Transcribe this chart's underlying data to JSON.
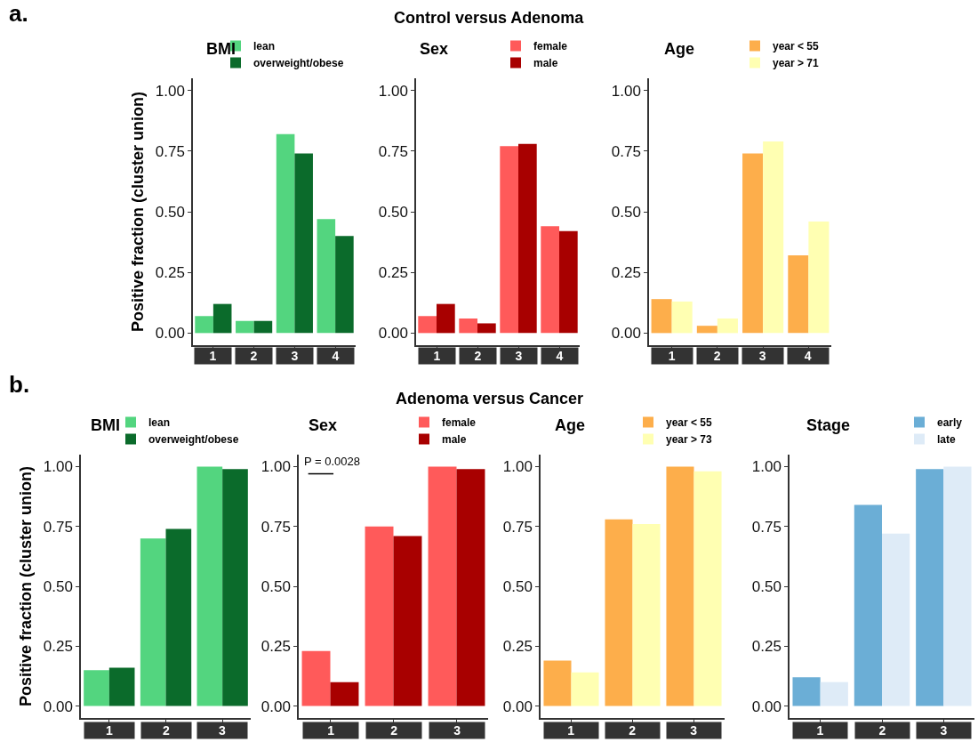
{
  "chart_data": [
    {
      "type": "bar",
      "title": "BMI",
      "ylabel": "Positive fraction (cluster union)",
      "annotations": [
        "a.",
        "Control versus Adenoma"
      ],
      "categories": [
        "1",
        "2",
        "3",
        "4"
      ],
      "legend": "top right",
      "grid": false,
      "ylim": [
        -0.05,
        1.05
      ],
      "yticks": [
        {
          "value": 0,
          "label": "0.00"
        },
        {
          "value": 0.25,
          "label": "0.25"
        },
        {
          "value": 0.5,
          "label": "0.50"
        },
        {
          "value": 0.75,
          "label": "0.75"
        },
        {
          "value": 1,
          "label": "1.00"
        }
      ],
      "series": [
        {
          "name": "lean",
          "color": "#53d57f",
          "values": [
            0.07,
            0.05,
            0.82,
            0.47
          ]
        },
        {
          "name": "overweight/obese",
          "color": "#0b6b2b",
          "values": [
            0.12,
            0.05,
            0.74,
            0.4
          ]
        }
      ]
    },
    {
      "type": "bar",
      "title": "Sex",
      "categories": [
        "1",
        "2",
        "3",
        "4"
      ],
      "legend": "top right",
      "grid": false,
      "ylim": [
        -0.05,
        1.05
      ],
      "yticks": [
        {
          "value": 0,
          "label": "0.00"
        },
        {
          "value": 0.25,
          "label": "0.25"
        },
        {
          "value": 0.5,
          "label": "0.50"
        },
        {
          "value": 0.75,
          "label": "0.75"
        },
        {
          "value": 1,
          "label": "1.00"
        }
      ],
      "series": [
        {
          "name": "female",
          "color": "#ff5a5a",
          "values": [
            0.07,
            0.06,
            0.77,
            0.44
          ]
        },
        {
          "name": "male",
          "color": "#a80000",
          "values": [
            0.12,
            0.04,
            0.78,
            0.42
          ]
        }
      ]
    },
    {
      "type": "bar",
      "title": "Age",
      "categories": [
        "1",
        "2",
        "3",
        "4"
      ],
      "legend": "top right",
      "grid": false,
      "ylim": [
        -0.05,
        1.05
      ],
      "yticks": [
        {
          "value": 0,
          "label": "0.00"
        },
        {
          "value": 0.25,
          "label": "0.25"
        },
        {
          "value": 0.5,
          "label": "0.50"
        },
        {
          "value": 0.75,
          "label": "0.75"
        },
        {
          "value": 1,
          "label": "1.00"
        }
      ],
      "series": [
        {
          "name": "year < 55",
          "color": "#fdae4b",
          "values": [
            0.14,
            0.03,
            0.74,
            0.32
          ]
        },
        {
          "name": "year > 71",
          "color": "#ffffb2",
          "values": [
            0.13,
            0.06,
            0.79,
            0.46
          ]
        }
      ]
    },
    {
      "type": "bar",
      "title": "BMI",
      "ylabel": "Positive fraction (cluster union)",
      "annotations": [
        "b.",
        "Adenoma versus Cancer"
      ],
      "categories": [
        "1",
        "2",
        "3"
      ],
      "legend": "top right",
      "grid": false,
      "ylim": [
        -0.05,
        1.05
      ],
      "yticks": [
        {
          "value": 0,
          "label": "0.00"
        },
        {
          "value": 0.25,
          "label": "0.25"
        },
        {
          "value": 0.5,
          "label": "0.50"
        },
        {
          "value": 0.75,
          "label": "0.75"
        },
        {
          "value": 1,
          "label": "1.00"
        }
      ],
      "series": [
        {
          "name": "lean",
          "color": "#53d57f",
          "values": [
            0.15,
            0.7,
            1.0
          ]
        },
        {
          "name": "overweight/obese",
          "color": "#0b6b2b",
          "values": [
            0.16,
            0.74,
            0.99
          ]
        }
      ]
    },
    {
      "type": "bar",
      "title": "Sex",
      "annotations": [
        "P = 0.0028"
      ],
      "categories": [
        "1",
        "2",
        "3"
      ],
      "legend": "top right",
      "grid": false,
      "ylim": [
        -0.05,
        1.05
      ],
      "yticks": [
        {
          "value": 0,
          "label": "0.00"
        },
        {
          "value": 0.25,
          "label": "0.25"
        },
        {
          "value": 0.5,
          "label": "0.50"
        },
        {
          "value": 0.75,
          "label": "0.75"
        },
        {
          "value": 1,
          "label": "1.00"
        }
      ],
      "series": [
        {
          "name": "female",
          "color": "#ff5a5a",
          "values": [
            0.23,
            0.75,
            1.0
          ]
        },
        {
          "name": "male",
          "color": "#a80000",
          "values": [
            0.1,
            0.71,
            0.99
          ]
        }
      ]
    },
    {
      "type": "bar",
      "title": "Age",
      "categories": [
        "1",
        "2",
        "3"
      ],
      "legend": "top right",
      "grid": false,
      "ylim": [
        -0.05,
        1.05
      ],
      "yticks": [
        {
          "value": 0,
          "label": "0.00"
        },
        {
          "value": 0.25,
          "label": "0.25"
        },
        {
          "value": 0.5,
          "label": "0.50"
        },
        {
          "value": 0.75,
          "label": "0.75"
        },
        {
          "value": 1,
          "label": "1.00"
        }
      ],
      "series": [
        {
          "name": "year < 55",
          "color": "#fdae4b",
          "values": [
            0.19,
            0.78,
            1.0
          ]
        },
        {
          "name": "year > 73",
          "color": "#ffffb2",
          "values": [
            0.14,
            0.76,
            0.98
          ]
        }
      ]
    },
    {
      "type": "bar",
      "title": "Stage",
      "categories": [
        "1",
        "2",
        "3"
      ],
      "legend": "top right",
      "grid": false,
      "ylim": [
        -0.05,
        1.05
      ],
      "yticks": [
        {
          "value": 0,
          "label": "0.00"
        },
        {
          "value": 0.25,
          "label": "0.25"
        },
        {
          "value": 0.5,
          "label": "0.50"
        },
        {
          "value": 0.75,
          "label": "0.75"
        },
        {
          "value": 1,
          "label": "1.00"
        }
      ],
      "series": [
        {
          "name": "early",
          "color": "#6baed6",
          "values": [
            0.12,
            0.84,
            0.99
          ]
        },
        {
          "name": "late",
          "color": "#deebf7",
          "values": [
            0.1,
            0.72,
            1.0
          ]
        }
      ]
    }
  ]
}
